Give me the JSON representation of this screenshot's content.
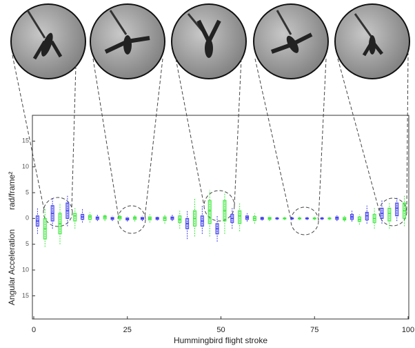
{
  "chart_data": {
    "type": "box",
    "x_label": "Hummingbird flight stroke",
    "y_label": "Angular Acceleration",
    "y_unit": "rad/frame²",
    "xlim": [
      0,
      100
    ],
    "xticks": [
      0,
      25,
      50,
      75,
      100
    ],
    "ylim": [
      -19.5,
      20
    ],
    "yticks": [
      {
        "value": -15,
        "label": "15"
      },
      {
        "value": -10,
        "label": "10"
      },
      {
        "value": -5,
        "label": "5"
      },
      0,
      5,
      10,
      15
    ],
    "series": [
      {
        "color": "#3a3aee",
        "x": [
          1,
          5,
          9,
          13,
          17,
          21,
          25,
          29,
          33,
          37,
          41,
          45,
          49,
          53,
          57,
          61,
          65,
          69,
          73,
          77,
          81,
          85,
          89,
          93,
          97
        ],
        "median": [
          -0.5,
          1,
          1.5,
          0.3,
          0.1,
          0,
          -0.1,
          0,
          0,
          0.1,
          -1,
          -0.5,
          -2,
          0,
          0.2,
          0,
          0,
          0,
          0,
          0,
          0.1,
          0.3,
          0.5,
          1,
          2
        ],
        "q1": [
          -1.5,
          -0.5,
          0,
          -0.2,
          -0.2,
          -0.2,
          -0.3,
          -0.2,
          -0.2,
          -0.2,
          -2,
          -1.5,
          -3,
          -0.8,
          -0.2,
          -0.2,
          -0.1,
          -0.1,
          -0.1,
          -0.1,
          -0.2,
          -0.2,
          -0.3,
          0,
          0.5
        ],
        "q3": [
          0.5,
          2.5,
          3,
          0.8,
          0.3,
          0.2,
          0.1,
          0.2,
          0.2,
          0.3,
          0,
          0.5,
          -1,
          0.8,
          0.5,
          0.2,
          0.1,
          0.1,
          0.1,
          0.1,
          0.3,
          0.8,
          1.2,
          2,
          3
        ],
        "low": [
          -3,
          -2,
          -1.5,
          -0.8,
          -0.5,
          -0.5,
          -0.6,
          -0.5,
          -0.4,
          -0.5,
          -4,
          -3,
          -4.5,
          -2,
          -0.6,
          -0.4,
          -0.3,
          -0.3,
          -0.3,
          -0.3,
          -0.5,
          -0.6,
          -1,
          -1,
          -0.5
        ],
        "high": [
          2,
          4,
          4.5,
          2,
          0.8,
          0.5,
          0.4,
          0.5,
          0.5,
          0.8,
          1.5,
          2.5,
          0.5,
          2,
          1,
          0.5,
          0.3,
          0.3,
          0.3,
          0.3,
          0.6,
          1.5,
          2.5,
          3.5,
          4
        ]
      },
      {
        "color": "#3ae83a",
        "x": [
          3,
          7,
          11,
          15,
          19,
          23,
          27,
          31,
          35,
          39,
          43,
          47,
          51,
          55,
          59,
          63,
          67,
          71,
          75,
          79,
          83,
          87,
          91,
          95,
          99
        ],
        "median": [
          -2,
          -1,
          0.5,
          0.3,
          0.3,
          0.2,
          0.1,
          0,
          0,
          -0.2,
          0,
          1.5,
          1.5,
          0.5,
          0,
          0,
          0,
          0,
          0,
          0,
          -0.1,
          -0.2,
          0,
          1,
          1.5
        ],
        "q1": [
          -4,
          -3,
          -0.5,
          -0.2,
          -0.1,
          -0.1,
          -0.2,
          -0.3,
          -0.4,
          -0.8,
          -1.5,
          -1,
          -0.5,
          -1,
          -0.4,
          -0.2,
          -0.1,
          -0.1,
          -0.1,
          -0.1,
          -0.3,
          -0.6,
          -0.8,
          -0.5,
          0
        ],
        "q3": [
          0,
          1,
          1,
          0.6,
          0.5,
          0.4,
          0.3,
          0.3,
          0.3,
          0.5,
          1.5,
          3.5,
          3.5,
          1.5,
          0.4,
          0.2,
          0.1,
          0.1,
          0.1,
          0.1,
          0.2,
          0.3,
          0.8,
          2,
          3
        ],
        "low": [
          -5.5,
          -5,
          -2,
          -0.8,
          -0.5,
          -0.5,
          -0.6,
          -0.8,
          -1,
          -2,
          -3.5,
          -3.5,
          -3,
          -2.5,
          -1,
          -0.5,
          -0.3,
          -0.3,
          -0.3,
          -0.3,
          -0.6,
          -1.2,
          -2,
          -2,
          -1.5
        ],
        "high": [
          2,
          3,
          2,
          1.2,
          0.9,
          0.8,
          0.6,
          0.8,
          0.8,
          1.5,
          4,
          5.5,
          5,
          3,
          1,
          0.5,
          0.3,
          0.3,
          0.3,
          0.3,
          0.5,
          0.8,
          2,
          3,
          4.5
        ]
      }
    ]
  }
}
